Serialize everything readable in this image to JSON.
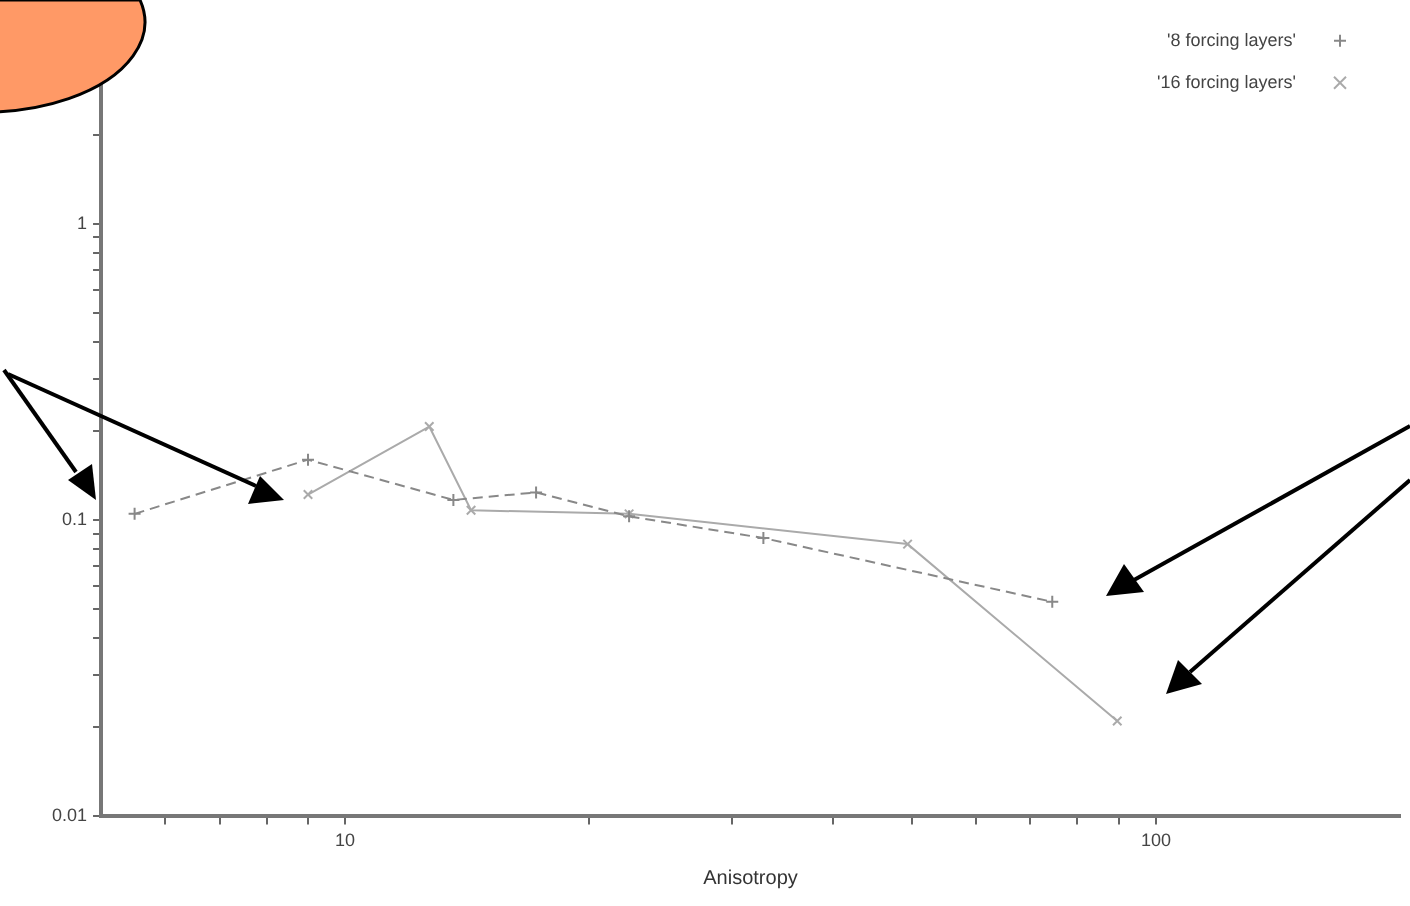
{
  "chart_data": {
    "type": "line",
    "xlabel": "Anisotropy",
    "log": "xy",
    "xlim": [
      5,
      200
    ],
    "ylim": [
      0.01,
      5
    ],
    "xticks": [
      {
        "value": 6,
        "label": null
      },
      {
        "value": 7,
        "label": null
      },
      {
        "value": 8,
        "label": null
      },
      {
        "value": 9,
        "label": null
      },
      10,
      {
        "value": 20,
        "label": null
      },
      {
        "value": 30,
        "label": null
      },
      {
        "value": 40,
        "label": null
      },
      {
        "value": 50,
        "label": null
      },
      {
        "value": 60,
        "label": null
      },
      {
        "value": 70,
        "label": null
      },
      {
        "value": 80,
        "label": null
      },
      {
        "value": 90,
        "label": null
      },
      100
    ],
    "yticks": [
      0.01,
      {
        "value": 0.02,
        "label": null
      },
      {
        "value": 0.03,
        "label": null
      },
      {
        "value": 0.04,
        "label": null
      },
      {
        "value": 0.05,
        "label": null
      },
      {
        "value": 0.06,
        "label": null
      },
      {
        "value": 0.07,
        "label": null
      },
      {
        "value": 0.08,
        "label": null
      },
      {
        "value": 0.09,
        "label": null
      },
      0.1,
      {
        "value": 0.2,
        "label": null
      },
      {
        "value": 0.3,
        "label": null
      },
      {
        "value": 0.4,
        "label": null
      },
      {
        "value": 0.5,
        "label": null
      },
      {
        "value": 0.6,
        "label": null
      },
      {
        "value": 0.7,
        "label": null
      },
      {
        "value": 0.8,
        "label": null
      },
      {
        "value": 0.9,
        "label": null
      },
      1,
      {
        "value": 2,
        "label": null
      },
      {
        "value": 3,
        "label": null
      },
      {
        "value": 4,
        "label": null
      },
      {
        "value": 5,
        "label": null
      }
    ],
    "grid": false,
    "legend": "top right",
    "marker": "cross",
    "series": [
      {
        "name": "'8 forcing layers'",
        "color": "#888888",
        "line_style": "dashed",
        "x": [
          5.5,
          9,
          13.6,
          17.2,
          22.4,
          32.8,
          74.5
        ],
        "values": [
          0.105,
          0.16,
          0.117,
          0.124,
          0.103,
          0.087,
          0.053
        ]
      },
      {
        "name": "'16 forcing layers'",
        "color": "#aaaaaa",
        "line_style": "solid",
        "x": [
          9,
          12.7,
          14.3,
          22.4,
          49.4,
          89.6
        ],
        "values": [
          0.122,
          0.207,
          0.108,
          0.105,
          0.083,
          0.021
        ]
      }
    ]
  }
}
